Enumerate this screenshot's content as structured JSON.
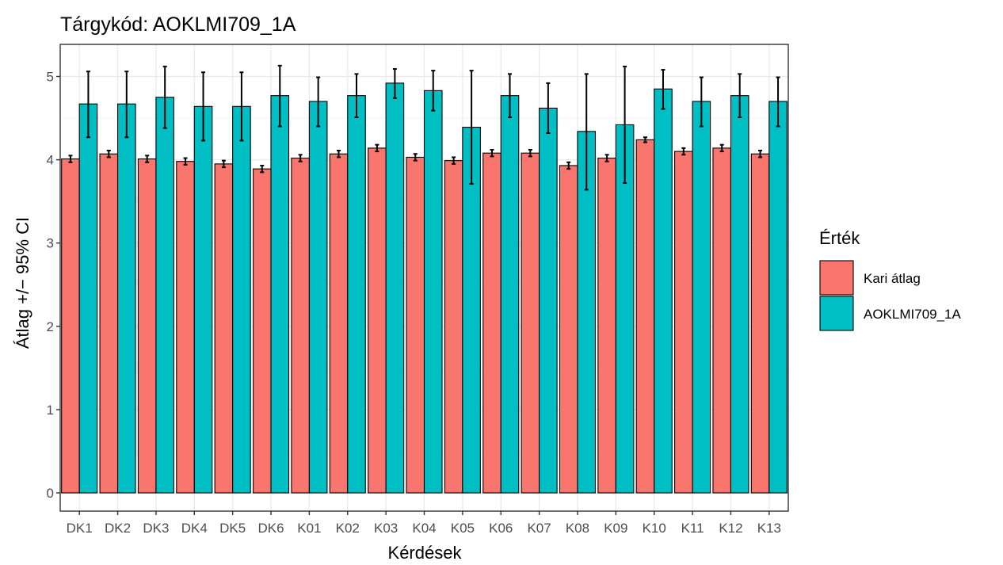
{
  "chart_data": {
    "type": "bar",
    "title": "Tárgykód:  AOKLMI709_1A",
    "xlabel": "Kérdések",
    "ylabel": "Átlag +/− 95% CI",
    "ylim": [
      0,
      5.3
    ],
    "yticks": [
      0,
      1,
      2,
      3,
      4,
      5
    ],
    "grid": true,
    "legend_position": "right",
    "legend_title": "Érték",
    "categories": [
      "DK1",
      "DK2",
      "DK3",
      "DK4",
      "DK5",
      "DK6",
      "K01",
      "K02",
      "K03",
      "K04",
      "K05",
      "K06",
      "K07",
      "K08",
      "K09",
      "K10",
      "K11",
      "K12",
      "K13"
    ],
    "series": [
      {
        "name": "Kari átlag",
        "color": "#F8766D",
        "values": [
          4.01,
          4.07,
          4.01,
          3.98,
          3.95,
          3.89,
          4.02,
          4.07,
          4.14,
          4.03,
          3.99,
          4.08,
          4.08,
          3.93,
          4.02,
          4.24,
          4.1,
          4.14,
          4.07
        ],
        "ci_low": [
          3.97,
          4.03,
          3.97,
          3.94,
          3.91,
          3.85,
          3.98,
          4.03,
          4.1,
          3.99,
          3.95,
          4.04,
          4.04,
          3.89,
          3.98,
          4.21,
          4.06,
          4.1,
          4.03
        ],
        "ci_high": [
          4.05,
          4.11,
          4.05,
          4.02,
          3.99,
          3.93,
          4.06,
          4.11,
          4.18,
          4.07,
          4.03,
          4.12,
          4.12,
          3.97,
          4.06,
          4.27,
          4.14,
          4.18,
          4.11
        ]
      },
      {
        "name": "AOKLMI709_1A",
        "color": "#00BFC4",
        "values": [
          4.67,
          4.67,
          4.75,
          4.64,
          4.64,
          4.77,
          4.7,
          4.77,
          4.92,
          4.83,
          4.39,
          4.77,
          4.62,
          4.34,
          4.42,
          4.85,
          4.7,
          4.77,
          4.7
        ],
        "ci_low": [
          4.27,
          4.27,
          4.38,
          4.23,
          4.23,
          4.4,
          4.4,
          4.51,
          4.74,
          4.59,
          3.71,
          4.51,
          4.32,
          3.64,
          3.72,
          4.61,
          4.4,
          4.51,
          4.4
        ],
        "ci_high": [
          5.06,
          5.06,
          5.12,
          5.05,
          5.05,
          5.13,
          4.99,
          5.03,
          5.09,
          5.07,
          5.07,
          5.03,
          4.92,
          5.03,
          5.12,
          5.08,
          4.99,
          5.03,
          4.99
        ]
      }
    ]
  }
}
